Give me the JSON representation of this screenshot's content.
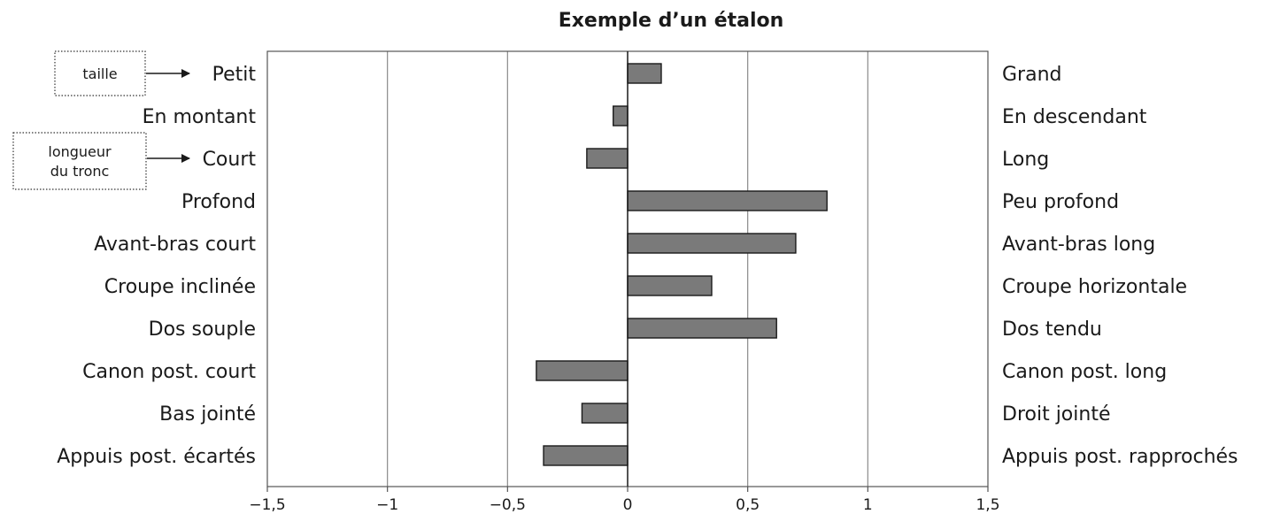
{
  "chart_data": {
    "type": "bar",
    "orientation": "horizontal",
    "title": "Exemple d’un étalon",
    "categories_left": [
      "Petit",
      "En montant",
      "Court",
      "Profond",
      "Avant-bras court",
      "Croupe inclinée",
      "Dos souple",
      "Canon post. court",
      "Bas jointé",
      "Appuis post. écartés"
    ],
    "categories_right": [
      "Grand",
      "En descendant",
      "Long",
      "Peu profond",
      "Avant-bras long",
      "Croupe horizontale",
      "Dos tendu",
      "Canon post. long",
      "Droit jointé",
      "Appuis post. rapprochés"
    ],
    "values": [
      0.14,
      -0.06,
      -0.17,
      0.83,
      0.7,
      0.35,
      0.62,
      -0.38,
      -0.19,
      -0.35
    ],
    "xlim": [
      -1.5,
      1.5
    ],
    "xticks": [
      -1.5,
      -1,
      -0.5,
      0,
      0.5,
      1,
      1.5
    ],
    "xtick_labels": [
      "−1,5",
      "−1",
      "−0,5",
      "0",
      "0,5",
      "1",
      "1,5"
    ],
    "grid": true,
    "bar_color": "#7a7a7a",
    "annotations": [
      {
        "text": [
          "taille"
        ],
        "target": "Petit"
      },
      {
        "text": [
          "longueur",
          "du tronc"
        ],
        "target": "Court"
      }
    ]
  }
}
